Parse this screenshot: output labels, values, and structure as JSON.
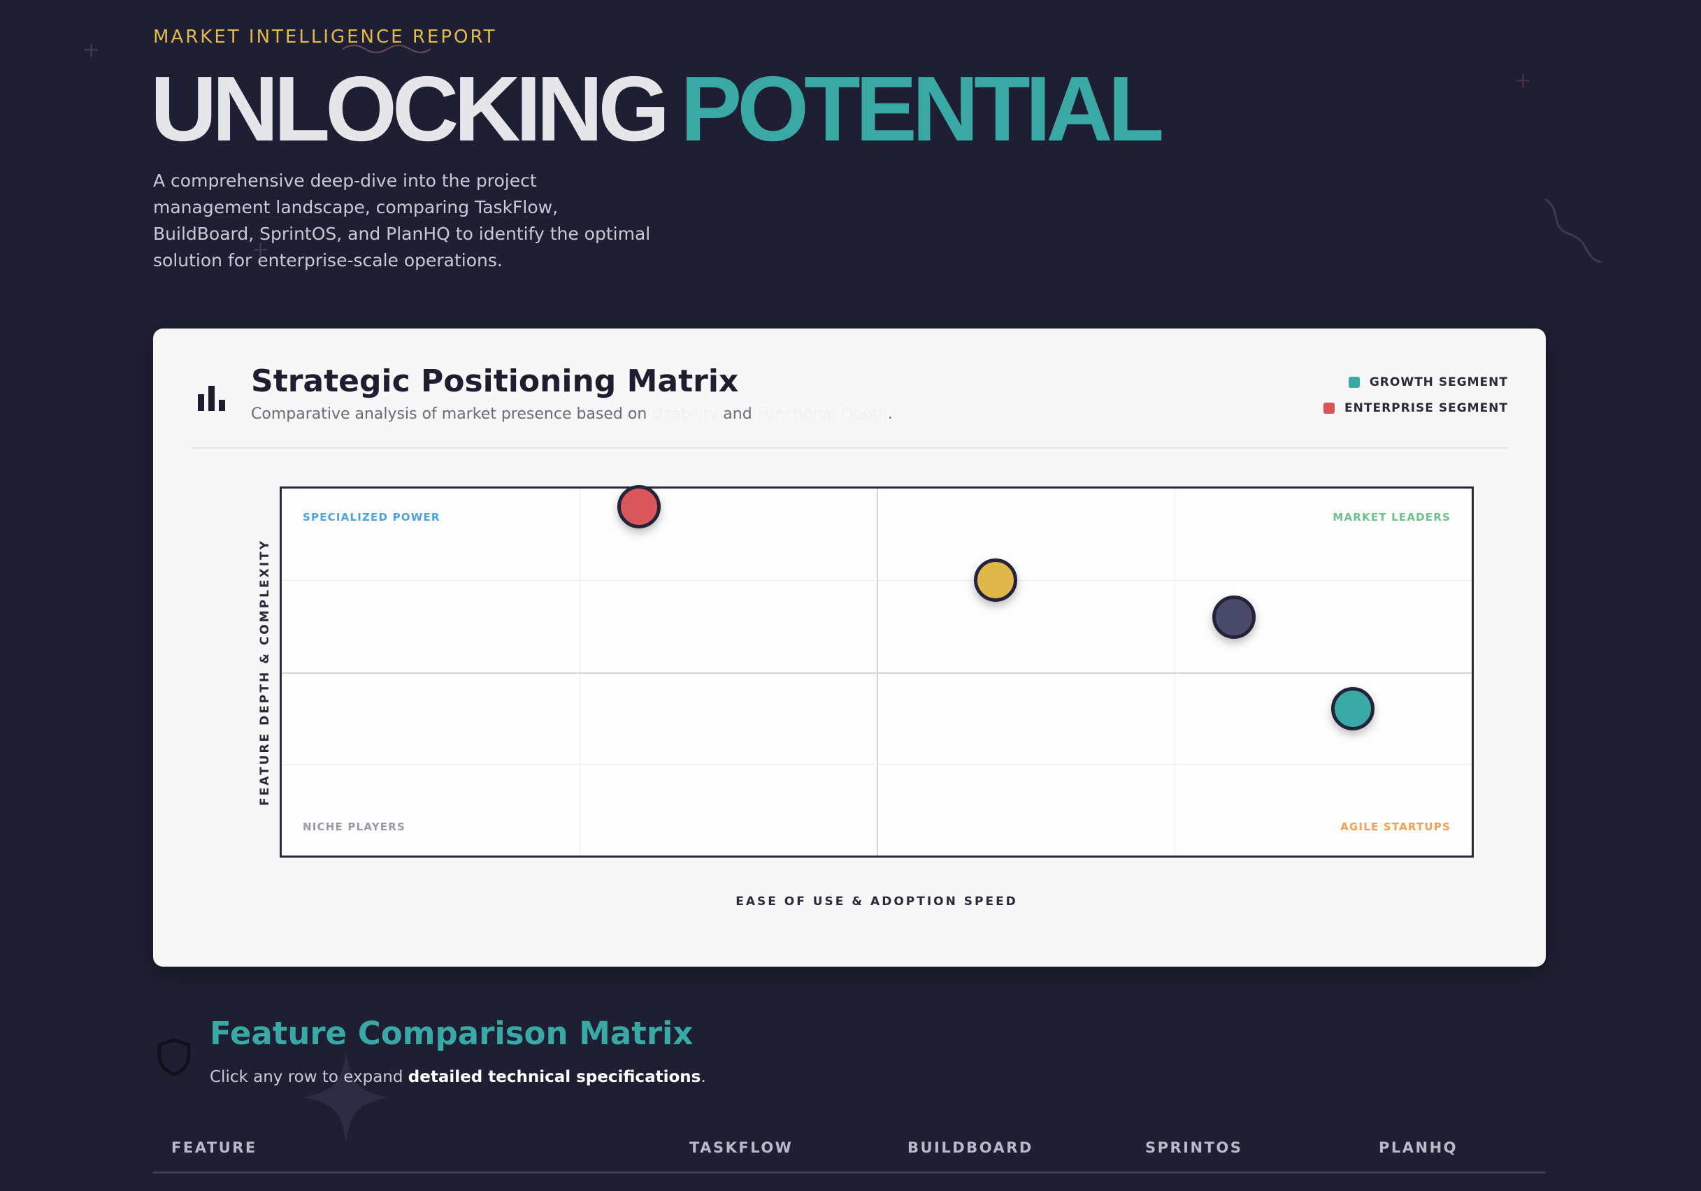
{
  "header": {
    "eyebrow": "MARKET INTELLIGENCE REPORT",
    "title_part1": "UNLOCKING",
    "title_part2": "POTENTIAL",
    "intro": "A comprehensive deep-dive into the project management landscape, comparing TaskFlow, BuildBoard, SprintOS, and PlanHQ to identify the optimal solution for enterprise-scale operations."
  },
  "matrix_card": {
    "icon": "bar-chart-icon",
    "title": "Strategic Positioning Matrix",
    "subtitle_prefix": "Comparative analysis of market presence based on",
    "subtitle_term1": "Usability",
    "subtitle_and": "and",
    "subtitle_term2": "Functional Depth",
    "subtitle_suffix": ".",
    "legend": [
      {
        "label": "GROWTH SEGMENT",
        "color": "#3aa8a4"
      },
      {
        "label": "ENTERPRISE SEGMENT",
        "color": "#d95656"
      }
    ],
    "quadrants": {
      "top_left": "SPECIALIZED POWER",
      "top_right": "MARKET LEADERS",
      "bottom_left": "NICHE PLAYERS",
      "bottom_right": "AGILE STARTUPS"
    },
    "quadrant_colors": {
      "top_left": "#4aa3e0",
      "top_right": "#6cc08a",
      "bottom_left": "#9a9aa6",
      "bottom_right": "#f0a050"
    }
  },
  "chart_data": {
    "type": "scatter",
    "xlabel": "EASE OF USE & ADOPTION SPEED",
    "ylabel": "FEATURE DEPTH & COMPLEXITY",
    "xlim": [
      0,
      100
    ],
    "ylim": [
      0,
      100
    ],
    "grid": true,
    "points": [
      {
        "x": 30,
        "y": 95,
        "color": "#d9575a"
      },
      {
        "x": 60,
        "y": 75,
        "color": "#e0b84a"
      },
      {
        "x": 80,
        "y": 65,
        "color": "#4a4a6a"
      },
      {
        "x": 90,
        "y": 40,
        "color": "#3aa8a4"
      }
    ]
  },
  "features_section": {
    "icon": "shield-icon",
    "title": "Feature Comparison Matrix",
    "subtitle_prefix": "Click any row to expand",
    "subtitle_bold": "detailed technical specifications",
    "subtitle_suffix": ".",
    "columns": [
      "FEATURE",
      "TASKFLOW",
      "BUILDBOARD",
      "SPRINTOS",
      "PLANHQ"
    ]
  }
}
